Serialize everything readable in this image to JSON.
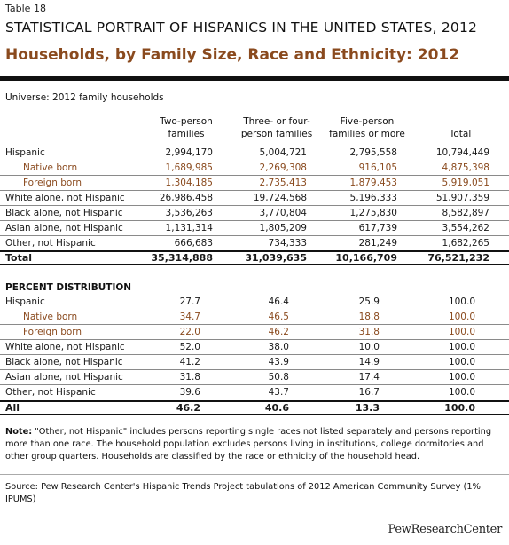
{
  "table_label": "Table 18",
  "supertitle": "STATISTICAL PORTRAIT OF HISPANICS IN THE UNITED STATES, 2012",
  "title": "Households, by Family Size, Race and Ethnicity: 2012",
  "universe": "Universe: 2012 family households",
  "columns": [
    "Two-person\nfamilies",
    "Three- or four-\nperson families",
    "Five-person\nfamilies or more",
    "Total"
  ],
  "counts": [
    {
      "label": "Hispanic",
      "values": [
        "2,994,170",
        "5,004,721",
        "2,795,558",
        "10,794,449"
      ],
      "sub": false,
      "nb": true
    },
    {
      "label": "Native born",
      "values": [
        "1,689,985",
        "2,269,308",
        "916,105",
        "4,875,398"
      ],
      "sub": true,
      "nb": false
    },
    {
      "label": "Foreign born",
      "values": [
        "1,304,185",
        "2,735,413",
        "1,879,453",
        "5,919,051"
      ],
      "sub": true,
      "nb": false
    },
    {
      "label": "White alone, not Hispanic",
      "values": [
        "26,986,458",
        "19,724,568",
        "5,196,333",
        "51,907,359"
      ],
      "sub": false,
      "nb": false
    },
    {
      "label": "Black alone, not Hispanic",
      "values": [
        "3,536,263",
        "3,770,804",
        "1,275,830",
        "8,582,897"
      ],
      "sub": false,
      "nb": false
    },
    {
      "label": "Asian alone, not Hispanic",
      "values": [
        "1,131,314",
        "1,805,209",
        "617,739",
        "3,554,262"
      ],
      "sub": false,
      "nb": false
    },
    {
      "label": "Other, not Hispanic",
      "values": [
        "666,683",
        "734,333",
        "281,249",
        "1,682,265"
      ],
      "sub": false,
      "nb": true
    }
  ],
  "total_row": {
    "label": "Total",
    "values": [
      "35,314,888",
      "31,039,635",
      "10,166,709",
      "76,521,232"
    ]
  },
  "pct_heading": "PERCENT DISTRIBUTION",
  "percents": [
    {
      "label": "Hispanic",
      "values": [
        "27.7",
        "46.4",
        "25.9",
        "100.0"
      ],
      "sub": false,
      "nb": true
    },
    {
      "label": "Native born",
      "values": [
        "34.7",
        "46.5",
        "18.8",
        "100.0"
      ],
      "sub": true,
      "nb": false
    },
    {
      "label": "Foreign born",
      "values": [
        "22.0",
        "46.2",
        "31.8",
        "100.0"
      ],
      "sub": true,
      "nb": false
    },
    {
      "label": "White alone, not Hispanic",
      "values": [
        "52.0",
        "38.0",
        "10.0",
        "100.0"
      ],
      "sub": false,
      "nb": false
    },
    {
      "label": "Black alone, not Hispanic",
      "values": [
        "41.2",
        "43.9",
        "14.9",
        "100.0"
      ],
      "sub": false,
      "nb": false
    },
    {
      "label": "Asian alone, not Hispanic",
      "values": [
        "31.8",
        "50.8",
        "17.4",
        "100.0"
      ],
      "sub": false,
      "nb": false
    },
    {
      "label": "Other, not Hispanic",
      "values": [
        "39.6",
        "43.7",
        "16.7",
        "100.0"
      ],
      "sub": false,
      "nb": true
    }
  ],
  "all_row": {
    "label": "All",
    "values": [
      "46.2",
      "40.6",
      "13.3",
      "100.0"
    ]
  },
  "note_label": "Note:",
  "note_text": " \"Other, not Hispanic\" includes persons reporting single races not listed separately and persons reporting more than one race. The household population excludes persons living in institutions, college dormitories and other group quarters. Households are classified by the race or ethnicity of the household head.",
  "source": "Source: Pew Research Center's Hispanic Trends Project tabulations of 2012 American Community Survey (1% IPUMS)",
  "brand": "PewResearchCenter"
}
